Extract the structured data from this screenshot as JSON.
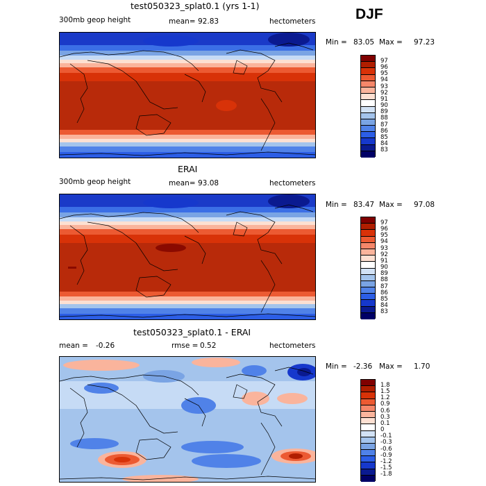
{
  "season": "DJF",
  "panels": [
    {
      "title": "test050323_splat0.1 (yrs 1-1)",
      "left_label": "300mb geop height",
      "mean_label": "mean=",
      "mean": "92.83",
      "rmse_label": "",
      "rmse": "",
      "units": "hectometers",
      "min_label": "Min =",
      "min": "83.05",
      "max_label": "Max =",
      "max": "97.23",
      "colorbar_labels": [
        "97",
        "96",
        "95",
        "94",
        "93",
        "92",
        "91",
        "90",
        "89",
        "88",
        "87",
        "86",
        "85",
        "84",
        "83"
      ],
      "colors": [
        "#800000",
        "#b01e00",
        "#d83208",
        "#ec5a32",
        "#f5876a",
        "#fab49c",
        "#fde0d2",
        "#ffffff",
        "#d2e2f5",
        "#a4c4ec",
        "#7aa4e4",
        "#5082e8",
        "#2c5ee6",
        "#1638cc",
        "#0a1a90",
        "#000066"
      ]
    },
    {
      "title": "ERAI",
      "left_label": "300mb geop height",
      "mean_label": "mean=",
      "mean": "93.08",
      "rmse_label": "",
      "rmse": "",
      "units": "hectometers",
      "min_label": "Min =",
      "min": "83.47",
      "max_label": "Max =",
      "max": "97.08",
      "colorbar_labels": [
        "97",
        "96",
        "95",
        "94",
        "93",
        "92",
        "91",
        "90",
        "89",
        "88",
        "87",
        "86",
        "85",
        "84",
        "83"
      ],
      "colors": [
        "#800000",
        "#b01e00",
        "#d83208",
        "#ec5a32",
        "#f5876a",
        "#fab49c",
        "#fde0d2",
        "#ffffff",
        "#d2e2f5",
        "#a4c4ec",
        "#7aa4e4",
        "#5082e8",
        "#2c5ee6",
        "#1638cc",
        "#0a1a90",
        "#000066"
      ]
    },
    {
      "title": "test050323_splat0.1 - ERAI",
      "left_label": "",
      "mean_label": "mean =",
      "mean": "-0.26",
      "rmse_label": "rmse =",
      "rmse": "0.52",
      "units": "hectometers",
      "min_label": "Min =",
      "min": "-2.36",
      "max_label": "Max =",
      "max": "1.70",
      "colorbar_labels": [
        "1.8",
        "1.5",
        "1.2",
        "0.9",
        "0.6",
        "0.3",
        "0.1",
        "0",
        "-0.1",
        "-0.3",
        "-0.6",
        "-0.9",
        "-1.2",
        "-1.5",
        "-1.8"
      ],
      "colors": [
        "#800000",
        "#b01e00",
        "#d83208",
        "#ec5a32",
        "#f5876a",
        "#fab49c",
        "#fde0d2",
        "#ffffff",
        "#d2e2f5",
        "#a4c4ec",
        "#7aa4e4",
        "#5082e8",
        "#2c5ee6",
        "#1638cc",
        "#0a1a90",
        "#000066"
      ]
    }
  ]
}
